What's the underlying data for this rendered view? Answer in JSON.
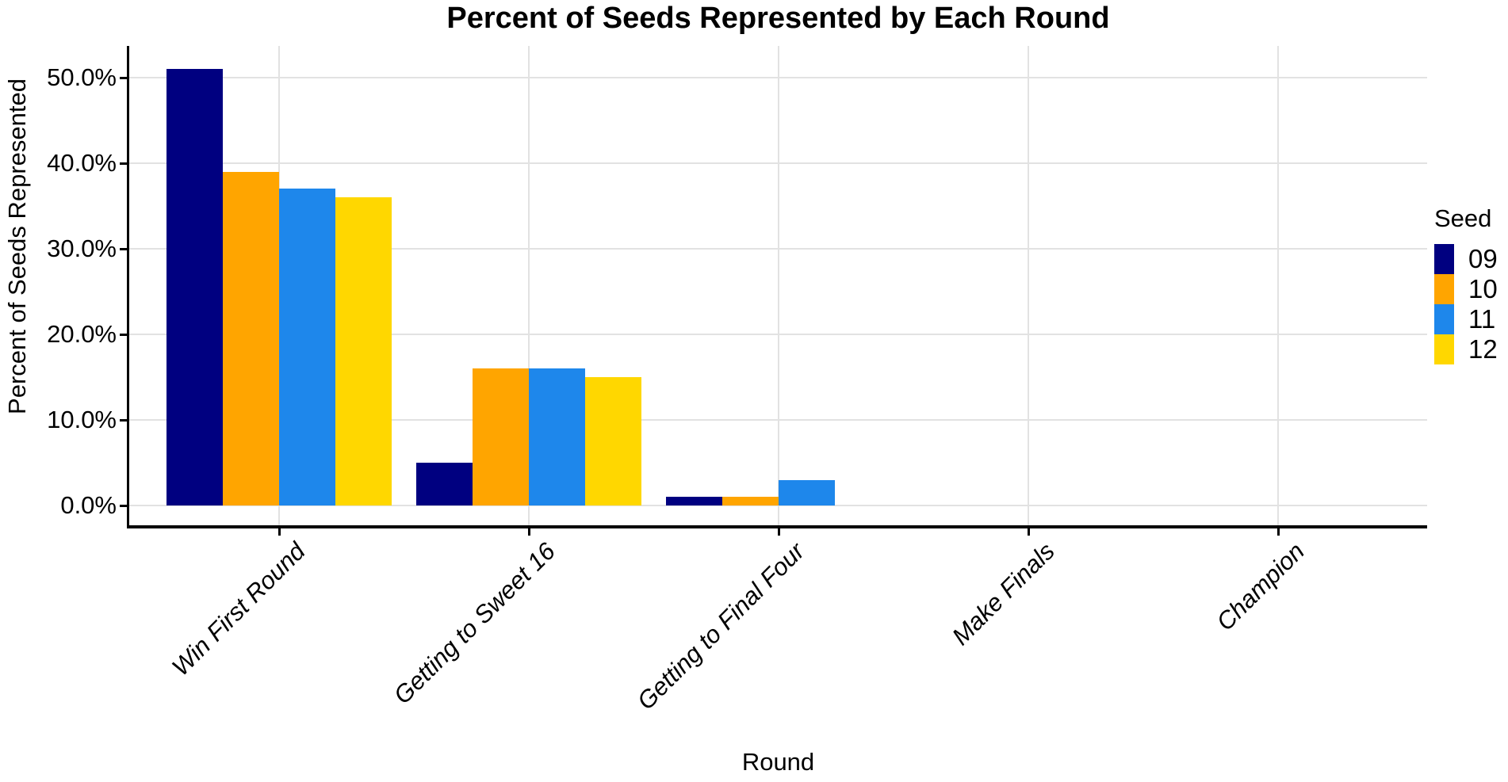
{
  "title": "Percent of Seeds Represented by Each Round",
  "axes": {
    "x_title": "Round",
    "y_title": "Percent of Seeds Represented",
    "y_ticks": [
      "0.0%",
      "10.0%",
      "20.0%",
      "30.0%",
      "40.0%",
      "50.0%"
    ]
  },
  "legend": {
    "title": "Seed",
    "items": [
      {
        "label": "09",
        "color": "#000080"
      },
      {
        "label": "10",
        "color": "#FFA500"
      },
      {
        "label": "11",
        "color": "#1E87EB"
      },
      {
        "label": "12",
        "color": "#FFD700"
      }
    ]
  },
  "colors": {
    "gridline": "#e2e2e2",
    "axis_line": "#000000",
    "background": "#ffffff"
  },
  "chart_data": {
    "type": "bar",
    "title": "Percent of Seeds Represented by Each Round",
    "xlabel": "Round",
    "ylabel": "Percent of Seeds Represented",
    "categories": [
      "Win First Round",
      "Getting to Sweet 16",
      "Getting to Final Four",
      "Make Finals",
      "Champion"
    ],
    "series": [
      {
        "name": "09",
        "color": "#000080",
        "values": [
          51,
          5,
          1,
          0,
          0
        ]
      },
      {
        "name": "10",
        "color": "#FFA500",
        "values": [
          39,
          16,
          1,
          0,
          0
        ]
      },
      {
        "name": "11",
        "color": "#1E87EB",
        "values": [
          37,
          16,
          3,
          0,
          0
        ]
      },
      {
        "name": "12",
        "color": "#FFD700",
        "values": [
          36,
          15,
          0,
          0,
          0
        ]
      }
    ],
    "value_unit": "percent",
    "ylim": [
      0,
      53.55
    ],
    "y_tick_step": 10,
    "grid": "major-only",
    "legend_position": "right",
    "legend_title": "Seed",
    "bar_mode": "grouped"
  }
}
